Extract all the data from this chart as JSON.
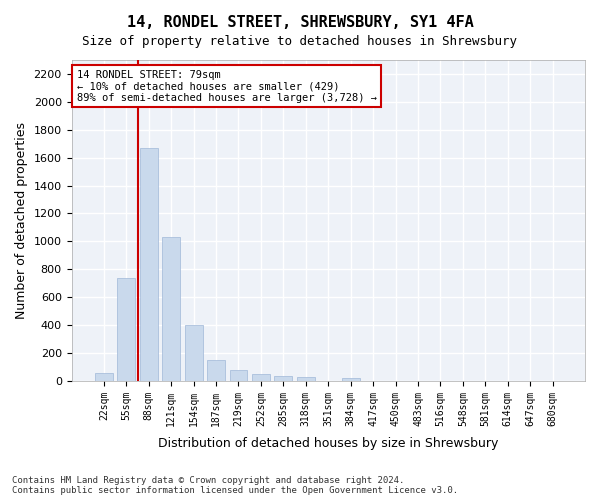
{
  "title": "14, RONDEL STREET, SHREWSBURY, SY1 4FA",
  "subtitle": "Size of property relative to detached houses in Shrewsbury",
  "xlabel": "Distribution of detached houses by size in Shrewsbury",
  "ylabel": "Number of detached properties",
  "bar_color": "#c9d9ec",
  "bar_edge_color": "#a0b8d8",
  "background_color": "#eef2f8",
  "grid_color": "#ffffff",
  "annotation_text": "14 RONDEL STREET: 79sqm\n← 10% of detached houses are smaller (429)\n89% of semi-detached houses are larger (3,728) →",
  "vline_x": 79,
  "vline_color": "#cc0000",
  "categories": [
    "22sqm",
    "55sqm",
    "88sqm",
    "121sqm",
    "154sqm",
    "187sqm",
    "219sqm",
    "252sqm",
    "285sqm",
    "318sqm",
    "351sqm",
    "384sqm",
    "417sqm",
    "450sqm",
    "483sqm",
    "516sqm",
    "548sqm",
    "581sqm",
    "614sqm",
    "647sqm",
    "680sqm"
  ],
  "values": [
    55,
    740,
    1670,
    1030,
    400,
    150,
    80,
    48,
    38,
    28,
    0,
    18,
    0,
    0,
    0,
    0,
    0,
    0,
    0,
    0,
    0
  ],
  "ylim": [
    0,
    2300
  ],
  "yticks": [
    0,
    200,
    400,
    600,
    800,
    1000,
    1200,
    1400,
    1600,
    1800,
    2000,
    2200
  ],
  "footnote": "Contains HM Land Registry data © Crown copyright and database right 2024.\nContains public sector information licensed under the Open Government Licence v3.0.",
  "figsize": [
    6.0,
    5.0
  ],
  "dpi": 100
}
